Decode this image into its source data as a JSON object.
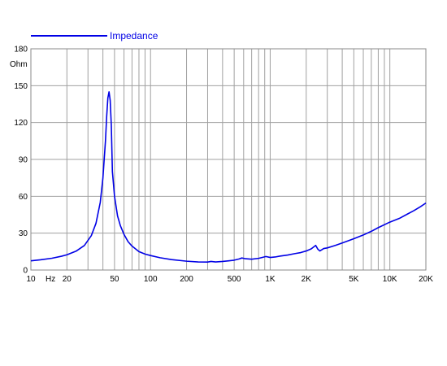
{
  "chart_data": {
    "type": "line",
    "title": "",
    "xlabel": "Hz",
    "ylabel": "Ohm",
    "x_scale": "log",
    "xlim": [
      10,
      20000
    ],
    "ylim": [
      0,
      180
    ],
    "grid": true,
    "legend_position": "top-left",
    "x_ticks": [
      {
        "value": 10,
        "label": "10"
      },
      {
        "value": 20,
        "label": "20"
      },
      {
        "value": 50,
        "label": "50"
      },
      {
        "value": 100,
        "label": "100"
      },
      {
        "value": 200,
        "label": "200"
      },
      {
        "value": 500,
        "label": "500"
      },
      {
        "value": 1000,
        "label": "1K"
      },
      {
        "value": 2000,
        "label": "2K"
      },
      {
        "value": 5000,
        "label": "5K"
      },
      {
        "value": 10000,
        "label": "10K"
      },
      {
        "value": 20000,
        "label": "20K"
      }
    ],
    "y_ticks": [
      0,
      30,
      60,
      90,
      120,
      150,
      180
    ],
    "series": [
      {
        "name": "Impedance",
        "color": "#0000e6",
        "x": [
          10,
          12,
          15,
          18,
          20,
          24,
          28,
          32,
          35,
          38,
          40,
          42,
          43,
          44,
          45,
          46,
          47,
          48,
          50,
          53,
          56,
          60,
          65,
          70,
          80,
          90,
          100,
          120,
          150,
          200,
          250,
          300,
          320,
          350,
          400,
          450,
          500,
          550,
          580,
          620,
          700,
          800,
          880,
          920,
          1000,
          1100,
          1200,
          1400,
          1600,
          1800,
          2000,
          2200,
          2400,
          2500,
          2600,
          2700,
          2800,
          3000,
          3500,
          4000,
          5000,
          6000,
          7000,
          8000,
          10000,
          12000,
          14000,
          16000,
          18000,
          20000
        ],
        "values": [
          7.5,
          8.3,
          9.6,
          11.2,
          12.4,
          15.5,
          20,
          28,
          38,
          55,
          75,
          105,
          125,
          140,
          145,
          138,
          118,
          80,
          60,
          44,
          36,
          29,
          23,
          19.5,
          15,
          13,
          11.8,
          10,
          8.5,
          7.2,
          6.6,
          6.5,
          7,
          6.6,
          7,
          7.5,
          8,
          9,
          9.8,
          9.2,
          8.8,
          9.5,
          10.5,
          11,
          10.2,
          10.6,
          11.3,
          12.2,
          13.3,
          14.2,
          15.5,
          17.2,
          20,
          17,
          15.5,
          16.5,
          17.5,
          18,
          20,
          22,
          25.5,
          28.5,
          31.5,
          34.5,
          39,
          42,
          45.5,
          48.5,
          51.5,
          54.5
        ]
      }
    ]
  }
}
